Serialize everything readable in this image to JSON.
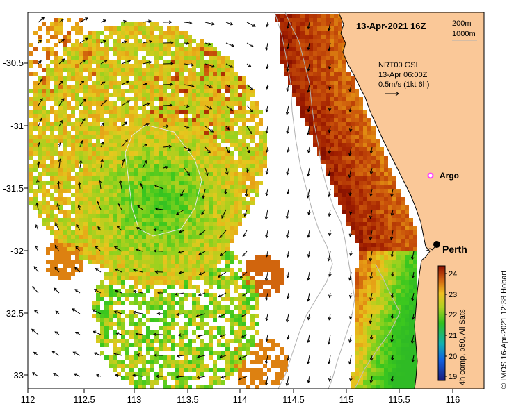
{
  "map": {
    "title": "13-Apr-2021 16Z",
    "contour_legend": [
      "200m",
      "1000m"
    ],
    "current_info": [
      "NRT00 GSL",
      "13-Apr 06:00Z",
      "0.5m/s (1kt 6h)"
    ],
    "credit": "©  IMOS 16-Apr-2021 12:38 Hobart",
    "colorbar_label": "4h comp, p50, All Sats",
    "colorbar_ticks": [
      "19",
      "20",
      "21",
      "22",
      "23",
      "24"
    ],
    "colorbar_range": [
      18.8,
      24.4
    ],
    "x_ticks": [
      "112",
      "112.5",
      "113",
      "113.5",
      "114",
      "114.5",
      "115",
      "115.5",
      "116"
    ],
    "y_ticks": [
      "-30.5",
      "-31",
      "-31.5",
      "-32",
      "-32.5",
      "-33"
    ],
    "lon_range": [
      112,
      116.3
    ],
    "lat_range": [
      -33.1,
      -30.1
    ],
    "places": [
      {
        "name": "Argo",
        "lon": 115.75,
        "lat": -31.45,
        "marker": "pink-circle"
      },
      {
        "name": "Perth",
        "lon": 115.86,
        "lat": -31.95,
        "marker": "black-dot"
      }
    ],
    "colors": {
      "land": "#fac898",
      "sst_hot": "#a01d00",
      "sst_warm": "#e0a020",
      "sst_mid": "#40c020",
      "contour": "#b0b0b0"
    }
  }
}
